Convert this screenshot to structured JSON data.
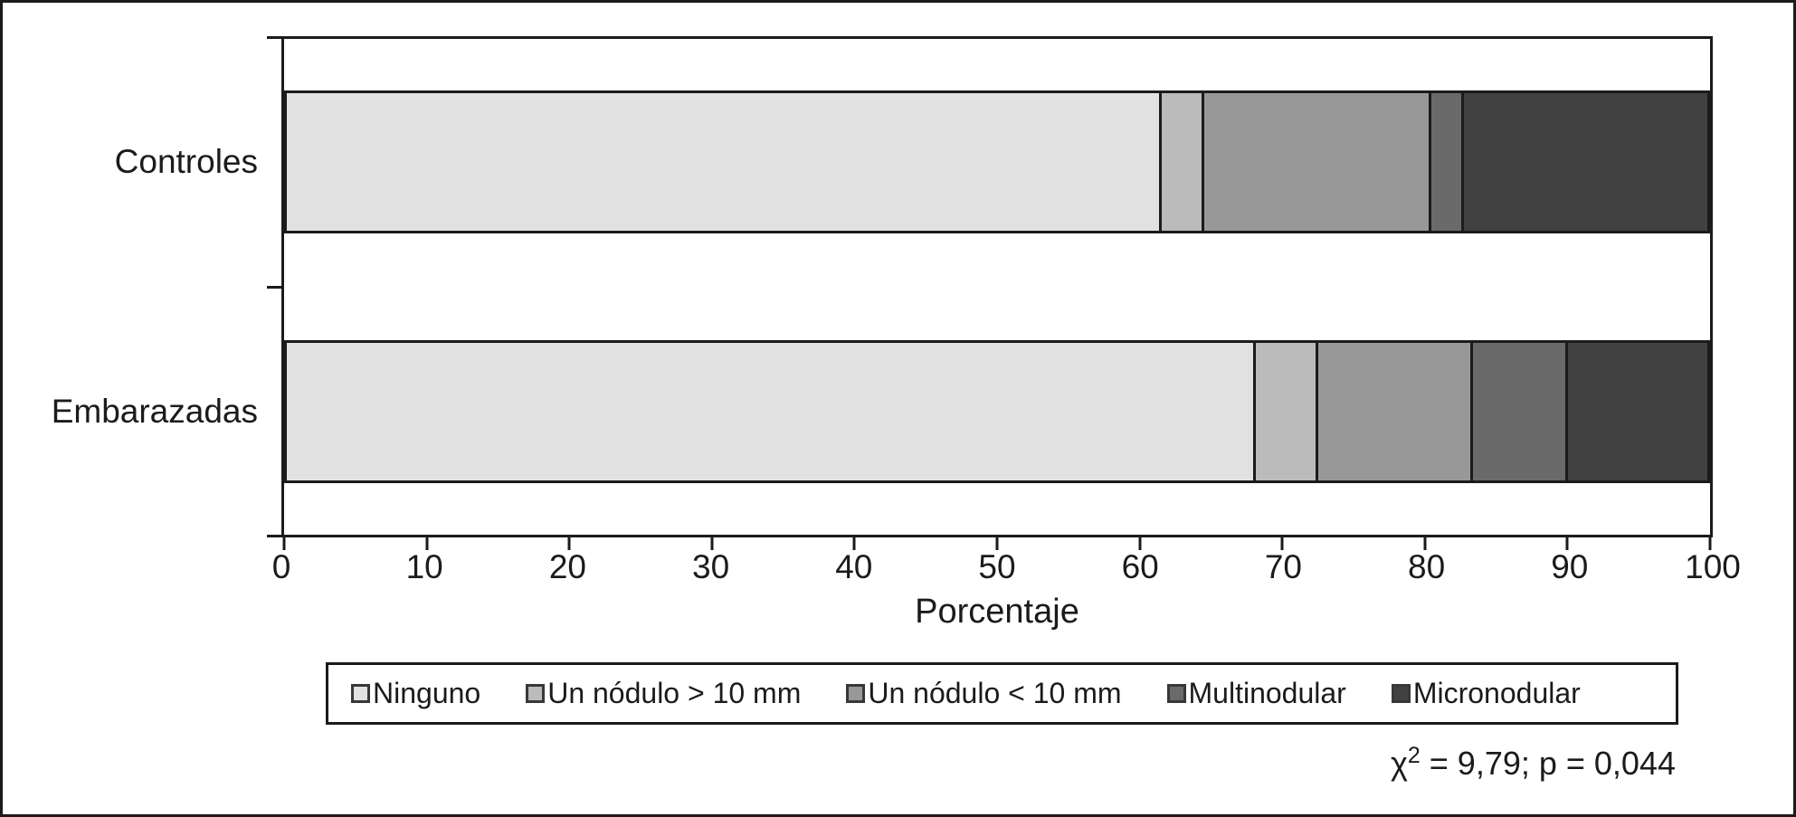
{
  "figure": {
    "xlabel": "Porcentaje",
    "annotation": {
      "chi": "χ",
      "sup": "2",
      "rest": " = 9,79; p = 0,044"
    }
  },
  "chart_data": {
    "type": "bar",
    "orientation": "horizontal",
    "stacked": true,
    "categories": [
      "Controles",
      "Embarazadas"
    ],
    "series": [
      {
        "name": "Ninguno",
        "color": "#e1e1e1",
        "values": [
          61.4,
          68.0
        ]
      },
      {
        "name": "Un nódulo > 10 mm",
        "color": "#bbbbbb",
        "values": [
          3.0,
          4.4
        ]
      },
      {
        "name": "Un nódulo < 10 mm",
        "color": "#989898",
        "values": [
          16.0,
          10.9
        ]
      },
      {
        "name": "Multinodular",
        "color": "#6a6a6a",
        "values": [
          2.3,
          6.7
        ]
      },
      {
        "name": "Micronodular",
        "color": "#414141",
        "values": [
          17.3,
          10.0
        ]
      }
    ],
    "xlabel": "Porcentaje",
    "xlim": [
      0,
      100
    ],
    "xticks": [
      0,
      10,
      20,
      30,
      40,
      50,
      60,
      70,
      80,
      90,
      100
    ],
    "grid": false,
    "legend_position": "bottom",
    "axis_color": "#1b1b1b",
    "annotation": "χ² = 9,79; p = 0,044"
  }
}
